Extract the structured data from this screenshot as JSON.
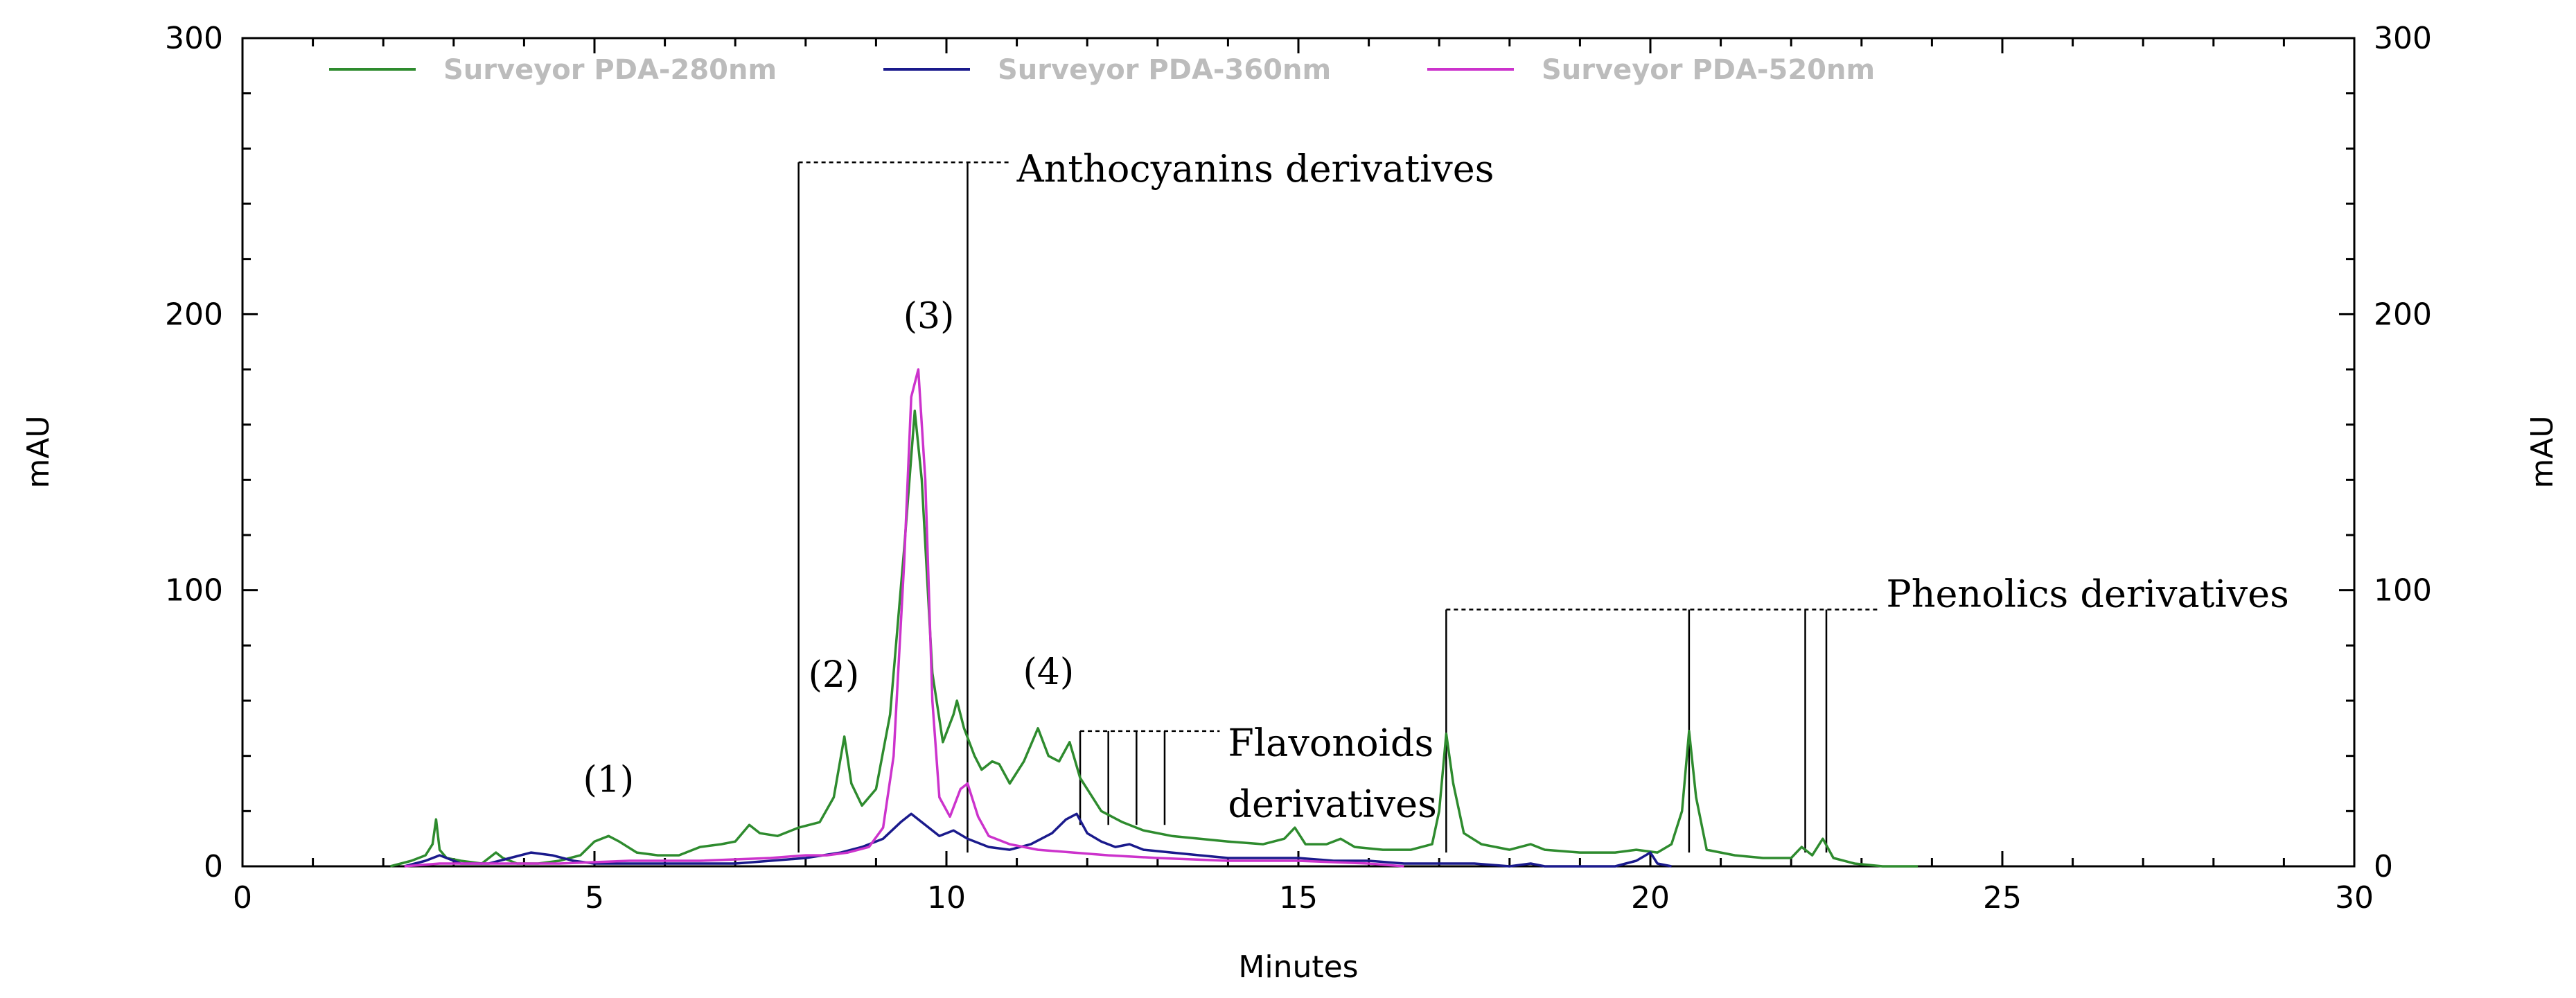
{
  "chart_data": {
    "type": "line",
    "xlabel": "Minutes",
    "ylabel_left": "mAU",
    "ylabel_right": "mAU",
    "xlim": [
      0,
      30
    ],
    "ylim": [
      0,
      300
    ],
    "x_ticks": [
      0,
      5,
      10,
      15,
      20,
      25,
      30
    ],
    "y_ticks": [
      0,
      100,
      200,
      300
    ],
    "grid": false,
    "legend_position": "top",
    "series": [
      {
        "name": "Surveyor PDA-280nm",
        "color": "#2e8b2e",
        "points": [
          [
            2.1,
            0
          ],
          [
            2.4,
            2
          ],
          [
            2.6,
            4
          ],
          [
            2.7,
            8
          ],
          [
            2.75,
            17
          ],
          [
            2.8,
            6
          ],
          [
            2.9,
            3
          ],
          [
            3.1,
            2
          ],
          [
            3.4,
            1
          ],
          [
            3.6,
            5
          ],
          [
            3.7,
            3
          ],
          [
            3.9,
            1
          ],
          [
            4.2,
            1
          ],
          [
            4.5,
            2
          ],
          [
            4.8,
            4
          ],
          [
            5.0,
            9
          ],
          [
            5.2,
            11
          ],
          [
            5.35,
            9
          ],
          [
            5.6,
            5
          ],
          [
            5.9,
            4
          ],
          [
            6.2,
            4
          ],
          [
            6.5,
            7
          ],
          [
            6.8,
            8
          ],
          [
            7.0,
            9
          ],
          [
            7.2,
            15
          ],
          [
            7.35,
            12
          ],
          [
            7.6,
            11
          ],
          [
            7.9,
            14
          ],
          [
            8.2,
            16
          ],
          [
            8.4,
            25
          ],
          [
            8.55,
            47
          ],
          [
            8.65,
            30
          ],
          [
            8.8,
            22
          ],
          [
            9.0,
            28
          ],
          [
            9.2,
            55
          ],
          [
            9.4,
            115
          ],
          [
            9.55,
            165
          ],
          [
            9.65,
            140
          ],
          [
            9.8,
            70
          ],
          [
            9.95,
            45
          ],
          [
            10.1,
            55
          ],
          [
            10.15,
            60
          ],
          [
            10.25,
            50
          ],
          [
            10.4,
            40
          ],
          [
            10.5,
            35
          ],
          [
            10.65,
            38
          ],
          [
            10.75,
            37
          ],
          [
            10.9,
            30
          ],
          [
            11.1,
            38
          ],
          [
            11.3,
            50
          ],
          [
            11.45,
            40
          ],
          [
            11.6,
            38
          ],
          [
            11.75,
            45
          ],
          [
            11.9,
            32
          ],
          [
            12.2,
            20
          ],
          [
            12.5,
            16
          ],
          [
            12.8,
            13
          ],
          [
            13.2,
            11
          ],
          [
            13.6,
            10
          ],
          [
            14.0,
            9
          ],
          [
            14.5,
            8
          ],
          [
            14.8,
            10
          ],
          [
            14.95,
            14
          ],
          [
            15.1,
            8
          ],
          [
            15.4,
            8
          ],
          [
            15.6,
            10
          ],
          [
            15.8,
            7
          ],
          [
            16.2,
            6
          ],
          [
            16.6,
            6
          ],
          [
            16.9,
            8
          ],
          [
            17.0,
            20
          ],
          [
            17.1,
            48
          ],
          [
            17.2,
            30
          ],
          [
            17.35,
            12
          ],
          [
            17.6,
            8
          ],
          [
            18.0,
            6
          ],
          [
            18.3,
            8
          ],
          [
            18.5,
            6
          ],
          [
            19.0,
            5
          ],
          [
            19.5,
            5
          ],
          [
            19.8,
            6
          ],
          [
            20.1,
            5
          ],
          [
            20.3,
            8
          ],
          [
            20.45,
            20
          ],
          [
            20.55,
            49
          ],
          [
            20.65,
            25
          ],
          [
            20.8,
            6
          ],
          [
            21.2,
            4
          ],
          [
            21.6,
            3
          ],
          [
            22.0,
            3
          ],
          [
            22.15,
            7
          ],
          [
            22.3,
            4
          ],
          [
            22.45,
            10
          ],
          [
            22.6,
            3
          ],
          [
            22.9,
            1
          ],
          [
            23.3,
            0
          ],
          [
            23.8,
            0
          ]
        ]
      },
      {
        "name": "Surveyor PDA-360nm",
        "color": "#1a1a8c",
        "points": [
          [
            2.3,
            0
          ],
          [
            2.6,
            2
          ],
          [
            2.8,
            4
          ],
          [
            2.9,
            3
          ],
          [
            3.1,
            1
          ],
          [
            3.5,
            1
          ],
          [
            3.8,
            3
          ],
          [
            4.1,
            5
          ],
          [
            4.4,
            4
          ],
          [
            4.7,
            2
          ],
          [
            5.0,
            1
          ],
          [
            5.5,
            1
          ],
          [
            6.0,
            1
          ],
          [
            6.5,
            1
          ],
          [
            7.0,
            1
          ],
          [
            7.5,
            2
          ],
          [
            8.0,
            3
          ],
          [
            8.5,
            5
          ],
          [
            8.8,
            7
          ],
          [
            9.1,
            10
          ],
          [
            9.35,
            16
          ],
          [
            9.5,
            19
          ],
          [
            9.7,
            15
          ],
          [
            9.9,
            11
          ],
          [
            10.1,
            13
          ],
          [
            10.3,
            10
          ],
          [
            10.6,
            7
          ],
          [
            10.9,
            6
          ],
          [
            11.2,
            8
          ],
          [
            11.5,
            12
          ],
          [
            11.7,
            17
          ],
          [
            11.85,
            19
          ],
          [
            12.0,
            12
          ],
          [
            12.2,
            9
          ],
          [
            12.4,
            7
          ],
          [
            12.6,
            8
          ],
          [
            12.8,
            6
          ],
          [
            13.2,
            5
          ],
          [
            13.6,
            4
          ],
          [
            14.0,
            3
          ],
          [
            14.5,
            3
          ],
          [
            15.0,
            3
          ],
          [
            15.5,
            2
          ],
          [
            16.0,
            2
          ],
          [
            16.5,
            1
          ],
          [
            17.0,
            1
          ],
          [
            17.5,
            1
          ],
          [
            18.0,
            0
          ],
          [
            18.3,
            1
          ],
          [
            18.5,
            0
          ],
          [
            19.0,
            0
          ],
          [
            19.5,
            0
          ],
          [
            19.8,
            2
          ],
          [
            20.0,
            5
          ],
          [
            20.1,
            1
          ],
          [
            20.3,
            0
          ]
        ]
      },
      {
        "name": "Surveyor PDA-520nm",
        "color": "#cc33cc",
        "points": [
          [
            2.3,
            0
          ],
          [
            2.8,
            1
          ],
          [
            3.5,
            1
          ],
          [
            4.5,
            1
          ],
          [
            5.5,
            2
          ],
          [
            6.5,
            2
          ],
          [
            7.5,
            3
          ],
          [
            8.0,
            4
          ],
          [
            8.3,
            4
          ],
          [
            8.6,
            5
          ],
          [
            8.9,
            7
          ],
          [
            9.1,
            14
          ],
          [
            9.25,
            40
          ],
          [
            9.4,
            110
          ],
          [
            9.5,
            170
          ],
          [
            9.6,
            180
          ],
          [
            9.7,
            140
          ],
          [
            9.8,
            60
          ],
          [
            9.9,
            25
          ],
          [
            10.05,
            18
          ],
          [
            10.2,
            28
          ],
          [
            10.3,
            30
          ],
          [
            10.45,
            18
          ],
          [
            10.6,
            11
          ],
          [
            10.9,
            8
          ],
          [
            11.3,
            6
          ],
          [
            11.8,
            5
          ],
          [
            12.3,
            4
          ],
          [
            13.0,
            3
          ],
          [
            14.0,
            2
          ],
          [
            15.0,
            2
          ],
          [
            16.0,
            1
          ],
          [
            16.5,
            0
          ]
        ]
      }
    ],
    "peak_labels": [
      {
        "text": "(1)",
        "x": 5.2,
        "y": 27
      },
      {
        "text": "(2)",
        "x": 8.4,
        "y": 65
      },
      {
        "text": "(3)",
        "x": 9.75,
        "y": 195
      },
      {
        "text": "(4)",
        "x": 11.45,
        "y": 66
      }
    ],
    "annotations": [
      {
        "text": "Anthocyanins derivatives",
        "x": 11.0,
        "y": 248,
        "bracket_top": 255,
        "bracket_x": [
          7.9,
          10.3
        ],
        "bracket_bottom": 5
      },
      {
        "text": "Flavonoids",
        "x": 14.0,
        "y": 40,
        "bracket_top": 49,
        "bracket_x": [
          11.9,
          12.3,
          12.7,
          13.1
        ],
        "bracket_bottom": 15
      },
      {
        "text": "derivatives",
        "x": 14.0,
        "y": 18
      },
      {
        "text": "Phenolics derivatives",
        "x": 23.35,
        "y": 94,
        "bracket_top": 93,
        "bracket_x": [
          17.1,
          20.55,
          22.2,
          22.5
        ],
        "bracket_bottom": 5
      }
    ]
  }
}
